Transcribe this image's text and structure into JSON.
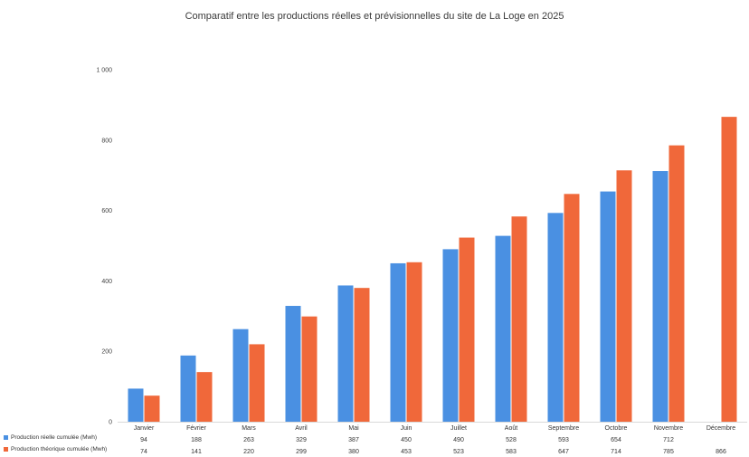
{
  "chart_data": {
    "type": "bar",
    "title": "Comparatif entre les productions réelles et prévisionnelles du site de La Loge en 2025",
    "categories": [
      "Janvier",
      "Février",
      "Mars",
      "Avril",
      "Mai",
      "Juin",
      "Juillet",
      "Août",
      "Septembre",
      "Octobre",
      "Novembre",
      "Décembre"
    ],
    "series": [
      {
        "name": "Production réelle cumulée (Mwh)",
        "color": "#4a90e2",
        "values": [
          94,
          188,
          263,
          329,
          387,
          450,
          490,
          528,
          593,
          654,
          712,
          null
        ],
        "labels": [
          "94",
          "188",
          "263",
          "329",
          "387",
          "450",
          "490",
          "528",
          "593",
          "654",
          "712",
          ""
        ]
      },
      {
        "name": "Production théorique cumulée (Mwh)",
        "color": "#f0683a",
        "values": [
          74,
          141,
          220,
          299,
          380,
          453,
          523,
          583,
          647,
          714,
          785,
          866
        ],
        "labels": [
          "74",
          "141",
          "220",
          "299",
          "380",
          "453",
          "523",
          "583",
          "647",
          "714",
          "785",
          "866"
        ]
      }
    ],
    "yticks": [
      "0",
      "200",
      "400",
      "600",
      "800",
      "1 000"
    ],
    "ylim": [
      0,
      1000
    ],
    "legend": "bottom-table",
    "grid": false
  }
}
